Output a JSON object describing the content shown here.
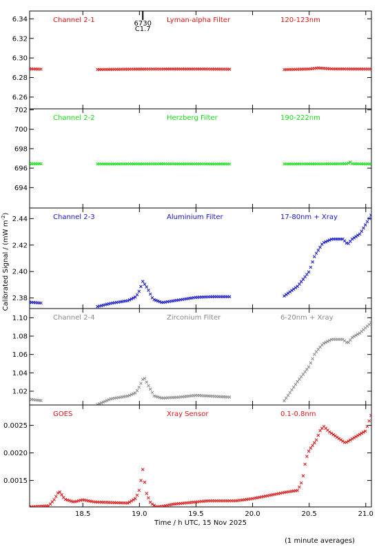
{
  "figure": {
    "ylabel": "Calibrated Signal / (mW m",
    "ylabel_sup": "-2",
    "ylabel_close": ")",
    "xlabel": "Time / h UTC, 15 Nov 2025",
    "footnote": "(1 minute averages)",
    "marker_label_top": "6730",
    "marker_label_bottom": "C1.7"
  },
  "chart_data": [
    {
      "type": "scatter",
      "channel": "Channel 2-1",
      "filter": "Lyman-alpha Filter",
      "band": "120-123nm",
      "color": "#dd1111",
      "xlim": [
        18.03,
        21.05
      ],
      "ylim": [
        6.248,
        6.348
      ],
      "yticks": [
        "6.26",
        "6.28",
        "6.30",
        "6.32",
        "6.34"
      ],
      "segments": [
        {
          "x0": 18.03,
          "x1": 18.13,
          "y": [
            [
              18.03,
              6.2888
            ],
            [
              18.13,
              6.2885
            ]
          ]
        },
        {
          "x0": 18.63,
          "x1": 19.81,
          "y": [
            [
              18.63,
              6.2882
            ],
            [
              19.0,
              6.2886
            ],
            [
              19.5,
              6.2887
            ],
            [
              19.81,
              6.2885
            ]
          ]
        },
        {
          "x0": 20.28,
          "x1": 21.05,
          "y": [
            [
              20.28,
              6.2881
            ],
            [
              20.5,
              6.2887
            ],
            [
              20.58,
              6.2898
            ],
            [
              20.7,
              6.2888
            ],
            [
              21.05,
              6.2886
            ]
          ]
        }
      ]
    },
    {
      "type": "scatter",
      "channel": "Channel 2-2",
      "filter": "Herzberg Filter",
      "band": "190-222nm",
      "color": "#11dd11",
      "xlim": [
        18.03,
        21.05
      ],
      "ylim": [
        691.9,
        702.1
      ],
      "yticks": [
        "694",
        "696",
        "698",
        "700",
        "702"
      ],
      "segments": [
        {
          "x0": 18.03,
          "x1": 18.13,
          "y": [
            [
              18.03,
              696.45
            ],
            [
              18.13,
              696.45
            ]
          ]
        },
        {
          "x0": 18.63,
          "x1": 19.81,
          "y": [
            [
              18.63,
              696.42
            ],
            [
              19.2,
              696.44
            ],
            [
              19.81,
              696.42
            ]
          ]
        },
        {
          "x0": 20.28,
          "x1": 21.05,
          "y": [
            [
              20.28,
              696.42
            ],
            [
              20.84,
              696.45
            ],
            [
              20.86,
              696.65
            ],
            [
              20.88,
              696.45
            ],
            [
              21.05,
              696.42
            ]
          ]
        }
      ]
    },
    {
      "type": "scatter",
      "channel": "Channel 2-3",
      "filter": "Aluminium Filter",
      "band": "17-80nm + Xray",
      "color": "#1111cc",
      "xlim": [
        18.03,
        21.05
      ],
      "ylim": [
        2.372,
        2.448
      ],
      "yticks": [
        "2.38",
        "2.40",
        "2.42",
        "2.44"
      ],
      "segments": [
        {
          "x0": 18.03,
          "x1": 18.13,
          "y": [
            [
              18.03,
              2.3768
            ],
            [
              18.13,
              2.3762
            ]
          ]
        },
        {
          "x0": 18.63,
          "x1": 19.81,
          "y": [
            [
              18.63,
              2.3735
            ],
            [
              18.75,
              2.376
            ],
            [
              18.9,
              2.378
            ],
            [
              18.97,
              2.381
            ],
            [
              19.0,
              2.3855
            ],
            [
              19.03,
              2.3925
            ],
            [
              19.07,
              2.3875
            ],
            [
              19.12,
              2.379
            ],
            [
              19.2,
              2.3765
            ],
            [
              19.35,
              2.3785
            ],
            [
              19.5,
              2.3805
            ],
            [
              19.65,
              2.381
            ],
            [
              19.81,
              2.381
            ]
          ]
        },
        {
          "x0": 20.28,
          "x1": 21.05,
          "y": [
            [
              20.28,
              2.3815
            ],
            [
              20.4,
              2.389
            ],
            [
              20.5,
              2.4
            ],
            [
              20.55,
              2.412
            ],
            [
              20.62,
              2.4215
            ],
            [
              20.7,
              2.4245
            ],
            [
              20.8,
              2.4245
            ],
            [
              20.84,
              2.4205
            ],
            [
              20.88,
              2.4245
            ],
            [
              20.95,
              2.4285
            ],
            [
              21.05,
              2.443
            ]
          ]
        }
      ]
    },
    {
      "type": "scatter",
      "channel": "Channel 2-4",
      "filter": "Zirconium Filter",
      "band": "6-20nm + Xray",
      "color": "#888888",
      "xlim": [
        18.03,
        21.05
      ],
      "ylim": [
        1.005,
        1.11
      ],
      "yticks": [
        "1.02",
        "1.04",
        "1.06",
        "1.08",
        "1.10"
      ],
      "segments": [
        {
          "x0": 18.03,
          "x1": 18.13,
          "y": [
            [
              18.03,
              1.0112
            ],
            [
              18.13,
              1.0098
            ]
          ]
        },
        {
          "x0": 18.63,
          "x1": 19.81,
          "y": [
            [
              18.63,
              1.0055
            ],
            [
              18.75,
              1.0118
            ],
            [
              18.9,
              1.0148
            ],
            [
              18.97,
              1.0185
            ],
            [
              19.0,
              1.025
            ],
            [
              19.04,
              1.0355
            ],
            [
              19.08,
              1.026
            ],
            [
              19.13,
              1.0148
            ],
            [
              19.2,
              1.0125
            ],
            [
              19.35,
              1.0135
            ],
            [
              19.5,
              1.0155
            ],
            [
              19.65,
              1.0145
            ],
            [
              19.81,
              1.0135
            ]
          ]
        },
        {
          "x0": 20.28,
          "x1": 21.05,
          "y": [
            [
              20.28,
              1.0095
            ],
            [
              20.4,
              1.031
            ],
            [
              20.5,
              1.047
            ],
            [
              20.55,
              1.061
            ],
            [
              20.62,
              1.0715
            ],
            [
              20.7,
              1.0765
            ],
            [
              20.8,
              1.0765
            ],
            [
              20.84,
              1.072
            ],
            [
              20.88,
              1.0785
            ],
            [
              20.95,
              1.0835
            ],
            [
              21.05,
              1.095
            ]
          ]
        }
      ]
    },
    {
      "type": "scatter",
      "channel": "GOES",
      "filter": "Xray Sensor",
      "band": "0.1-0.8nm",
      "color": "#dd1111",
      "xlim": [
        18.03,
        21.05
      ],
      "ylim": [
        0.00102,
        0.00287
      ],
      "yticks": [
        "0.0015",
        "0.0020",
        "0.0025"
      ],
      "segments": [
        {
          "x0": 18.03,
          "x1": 21.05,
          "y": [
            [
              18.03,
              0.00102
            ],
            [
              18.2,
              0.00104
            ],
            [
              18.25,
              0.00116
            ],
            [
              18.29,
              0.00131
            ],
            [
              18.34,
              0.00116
            ],
            [
              18.42,
              0.00111
            ],
            [
              18.5,
              0.00115
            ],
            [
              18.6,
              0.00111
            ],
            [
              18.9,
              0.00109
            ],
            [
              18.97,
              0.00118
            ],
            [
              19.0,
              0.00134
            ],
            [
              19.03,
              0.0017
            ],
            [
              19.06,
              0.00128
            ],
            [
              19.1,
              0.00109
            ],
            [
              19.15,
              0.00102
            ],
            [
              19.2,
              0.00103
            ],
            [
              19.3,
              0.00107
            ],
            [
              19.45,
              0.0011
            ],
            [
              19.6,
              0.00113
            ],
            [
              19.85,
              0.00113
            ],
            [
              20.0,
              0.00117
            ],
            [
              20.15,
              0.00123
            ],
            [
              20.3,
              0.00129
            ],
            [
              20.4,
              0.00132
            ],
            [
              20.44,
              0.0015
            ],
            [
              20.47,
              0.00188
            ],
            [
              20.5,
              0.00205
            ],
            [
              20.56,
              0.00222
            ],
            [
              20.6,
              0.00242
            ],
            [
              20.63,
              0.00248
            ],
            [
              20.68,
              0.00238
            ],
            [
              20.75,
              0.00228
            ],
            [
              20.82,
              0.00218
            ],
            [
              20.9,
              0.00228
            ],
            [
              21.0,
              0.0024
            ],
            [
              21.05,
              0.0027
            ]
          ]
        }
      ]
    }
  ],
  "xaxis": {
    "ticks": [
      18.5,
      19.0,
      19.5,
      20.0,
      20.5,
      21.0
    ],
    "tick_labels": [
      "18.5",
      "19.0",
      "19.5",
      "20.0",
      "20.5",
      "21.0"
    ],
    "marker_x": 19.03
  }
}
